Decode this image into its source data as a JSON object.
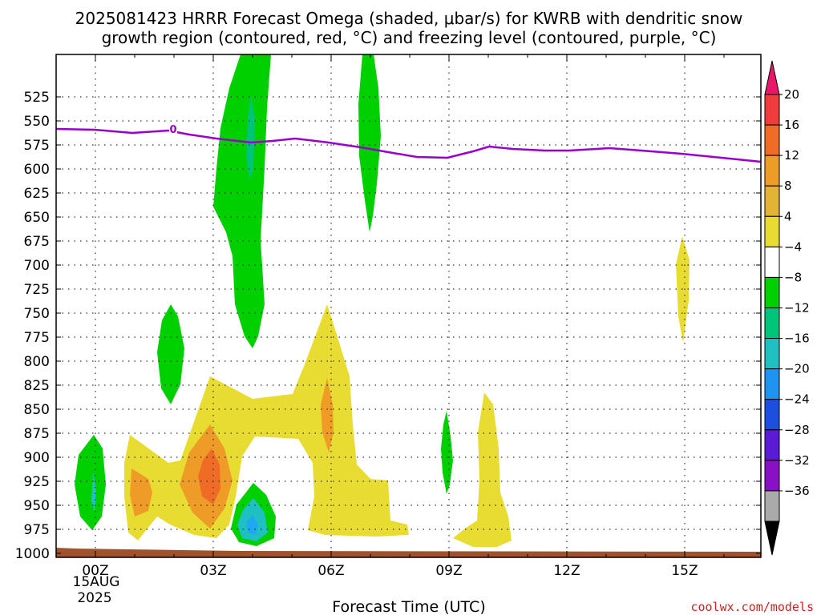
{
  "chart_data": {
    "type": "contour",
    "title_line1": "2025081423 HRRR Forecast Omega (shaded, μbar/s) for KWRB with dendritic snow",
    "title_line2": "growth region (contoured, red, °C) and freezing level (contoured, purple, °C)",
    "xlabel": "Forecast Time (UTC)",
    "x_ticks": [
      "00Z",
      "03Z",
      "06Z",
      "09Z",
      "12Z",
      "15Z"
    ],
    "x_date_line1": "15AUG",
    "x_date_line2": "2025",
    "y_ticks": [
      525,
      550,
      575,
      600,
      625,
      650,
      675,
      700,
      725,
      750,
      775,
      800,
      825,
      850,
      875,
      900,
      925,
      950,
      975,
      1000
    ],
    "colorbar": {
      "labels": [
        "20",
        "16",
        "12",
        "8",
        "4",
        "−4",
        "−8",
        "−12",
        "−16",
        "−20",
        "−24",
        "−28",
        "−32",
        "−36"
      ],
      "colors": [
        "#e8176a",
        "#f03c3c",
        "#ef6b26",
        "#ef9b27",
        "#e3b336",
        "#e8dc32",
        "#ffffff",
        "#00d000",
        "#00c47a",
        "#1fc0c2",
        "#1e93f0",
        "#1e4ee0",
        "#5a1ad6",
        "#8a10c6",
        "#aaaaaa",
        "#000000"
      ]
    },
    "freezing_level_label": "0",
    "freezing_level_color": "#9900cc",
    "credit": "coolwx.com/models"
  }
}
